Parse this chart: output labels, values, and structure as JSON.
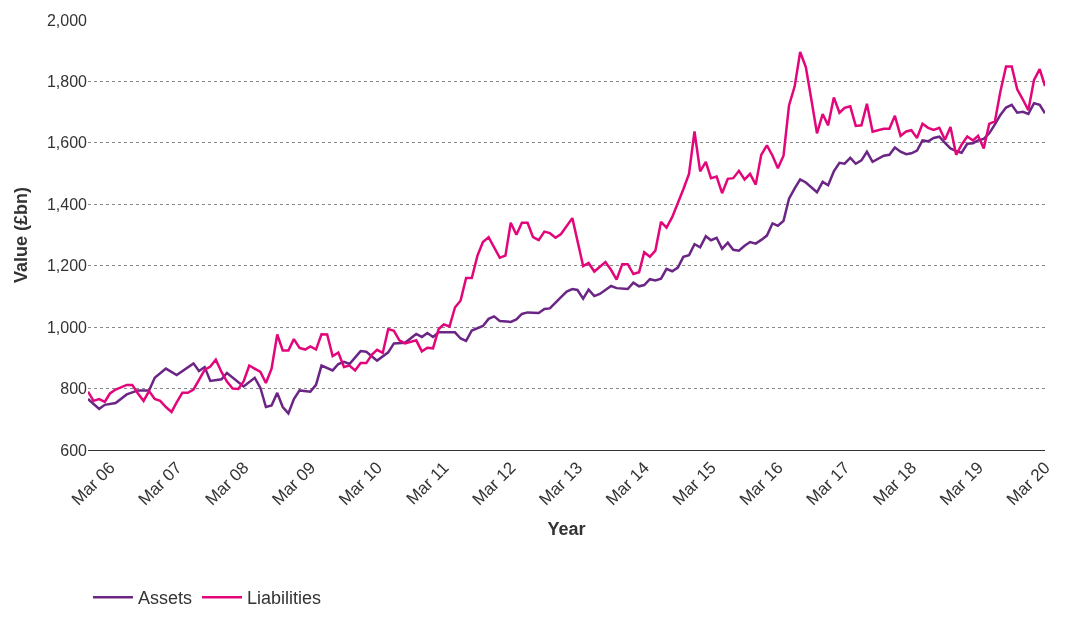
{
  "chart_data": {
    "type": "line",
    "xlabel": "Year",
    "ylabel": "Value (£bn)",
    "xlim": [
      "2005-11",
      "2020-03"
    ],
    "xticks": [
      {
        "value": "2006-03",
        "label": "Mar 06"
      },
      {
        "value": "2007-03",
        "label": "Mar 07"
      },
      {
        "value": "2008-03",
        "label": "Mar 08"
      },
      {
        "value": "2009-03",
        "label": "Mar 09"
      },
      {
        "value": "2010-03",
        "label": "Mar 10"
      },
      {
        "value": "2011-03",
        "label": "Mar 11"
      },
      {
        "value": "2012-03",
        "label": "Mar 12"
      },
      {
        "value": "2013-03",
        "label": "Mar 13"
      },
      {
        "value": "2014-03",
        "label": "Mar 14"
      },
      {
        "value": "2015-03",
        "label": "Mar 15"
      },
      {
        "value": "2016-03",
        "label": "Mar 16"
      },
      {
        "value": "2017-03",
        "label": "Mar 17"
      },
      {
        "value": "2018-03",
        "label": "Mar 18"
      },
      {
        "value": "2019-03",
        "label": "Mar 19"
      },
      {
        "value": "2020-03",
        "label": "Mar 20"
      }
    ],
    "ylim": [
      600,
      2000
    ],
    "yticks": [
      600,
      800,
      {
        "value": 1000,
        "label": "1,000"
      },
      {
        "value": 1200,
        "label": "1,200"
      },
      {
        "value": 1400,
        "label": "1,400"
      },
      {
        "value": 1600,
        "label": "1,600"
      },
      {
        "value": 1800,
        "label": "1,800"
      },
      {
        "value": 2000,
        "label": "2,000"
      }
    ],
    "grid": "y",
    "legend": "bottom left",
    "marker": "none",
    "line_style": "solid",
    "series": [
      {
        "name": "Assets",
        "color": "#6b2584",
        "x": [
          "2005-11",
          "2006-01",
          "2006-02",
          "2006-04",
          "2006-06",
          "2006-08",
          "2006-10",
          "2006-11",
          "2007-01",
          "2007-03",
          "2007-06",
          "2007-07",
          "2007-08",
          "2007-09",
          "2007-11",
          "2007-12",
          "2008-03",
          "2008-05",
          "2008-06",
          "2008-07",
          "2008-08",
          "2008-09",
          "2008-10",
          "2008-11",
          "2008-12",
          "2009-01",
          "2009-03",
          "2009-04",
          "2009-05",
          "2009-07",
          "2009-08",
          "2009-09",
          "2009-10",
          "2009-12",
          "2010-01",
          "2010-03",
          "2010-05",
          "2010-06",
          "2010-08",
          "2010-10",
          "2010-11",
          "2010-12",
          "2011-01",
          "2011-02",
          "2011-05",
          "2011-06",
          "2011-07",
          "2011-08",
          "2011-10",
          "2011-11",
          "2011-12",
          "2012-01",
          "2012-03",
          "2012-04",
          "2012-05",
          "2012-06",
          "2012-08",
          "2012-09",
          "2012-10",
          "2012-12",
          "2013-01",
          "2013-02",
          "2013-03",
          "2013-04",
          "2013-05",
          "2013-06",
          "2013-07",
          "2013-09",
          "2013-10",
          "2013-12",
          "2014-01",
          "2014-02",
          "2014-03",
          "2014-04",
          "2014-05",
          "2014-06",
          "2014-07",
          "2014-08",
          "2014-09",
          "2014-10",
          "2014-11",
          "2014-12",
          "2015-01",
          "2015-02",
          "2015-03",
          "2015-04",
          "2015-05",
          "2015-06",
          "2015-07",
          "2015-08",
          "2015-09",
          "2015-10",
          "2015-11",
          "2015-12",
          "2016-01",
          "2016-02",
          "2016-03",
          "2016-04",
          "2016-05",
          "2016-06",
          "2016-07",
          "2016-08",
          "2016-10",
          "2016-11",
          "2016-12",
          "2017-01",
          "2017-02",
          "2017-03",
          "2017-04",
          "2017-05",
          "2017-06",
          "2017-07",
          "2017-08",
          "2017-10",
          "2017-11",
          "2017-12",
          "2018-01",
          "2018-02",
          "2018-03",
          "2018-04",
          "2018-05",
          "2018-06",
          "2018-07",
          "2018-08",
          "2018-09",
          "2018-10",
          "2018-11",
          "2018-12",
          "2019-01",
          "2019-02",
          "2019-03",
          "2019-04",
          "2019-05",
          "2019-06",
          "2019-07",
          "2019-08",
          "2019-09",
          "2019-10",
          "2019-11",
          "2019-12",
          "2020-01",
          "2020-02",
          "2020-03"
        ],
        "values": [
          766,
          734,
          747,
          753,
          781,
          794,
          794,
          835,
          865,
          844,
          882,
          857,
          870,
          825,
          830,
          851,
          807,
          835,
          802,
          740,
          745,
          786,
          740,
          719,
          766,
          794,
          790,
          812,
          875,
          859,
          880,
          887,
          880,
          922,
          920,
          891,
          918,
          947,
          949,
          978,
          968,
          981,
          968,
          983,
          983,
          963,
          955,
          989,
          1004,
          1027,
          1035,
          1020,
          1017,
          1025,
          1043,
          1048,
          1046,
          1059,
          1061,
          1098,
          1116,
          1124,
          1121,
          1093,
          1122,
          1101,
          1108,
          1134,
          1127,
          1124,
          1145,
          1133,
          1137,
          1156,
          1152,
          1158,
          1190,
          1182,
          1194,
          1229,
          1234,
          1270,
          1260,
          1296,
          1283,
          1291,
          1255,
          1275,
          1252,
          1249,
          1265,
          1277,
          1272,
          1284,
          1298,
          1338,
          1330,
          1346,
          1418,
          1452,
          1481,
          1471,
          1439,
          1473,
          1462,
          1507,
          1535,
          1532,
          1551,
          1532,
          1543,
          1571,
          1538,
          1558,
          1561,
          1585,
          1571,
          1563,
          1566,
          1575,
          1608,
          1605,
          1616,
          1620,
          1600,
          1582,
          1573,
          1568,
          1597,
          1599,
          1608,
          1613,
          1631,
          1660,
          1691,
          1715,
          1724,
          1698,
          1701,
          1694,
          1729,
          1724,
          1696
        ]
      },
      {
        "name": "Liabilities",
        "color": "#e2067a",
        "x": [
          "2005-11",
          "2005-12",
          "2006-01",
          "2006-02",
          "2006-03",
          "2006-04",
          "2006-06",
          "2006-07",
          "2006-08",
          "2006-09",
          "2006-10",
          "2006-11",
          "2006-12",
          "2007-01",
          "2007-02",
          "2007-03",
          "2007-04",
          "2007-05",
          "2007-06",
          "2007-07",
          "2007-08",
          "2007-09",
          "2007-10",
          "2007-11",
          "2007-12",
          "2008-01",
          "2008-02",
          "2008-03",
          "2008-04",
          "2008-06",
          "2008-07",
          "2008-08",
          "2008-09",
          "2008-10",
          "2008-11",
          "2008-12",
          "2009-01",
          "2009-02",
          "2009-03",
          "2009-04",
          "2009-05",
          "2009-06",
          "2009-07",
          "2009-08",
          "2009-09",
          "2009-10",
          "2009-11",
          "2009-12",
          "2010-01",
          "2010-02",
          "2010-03",
          "2010-04",
          "2010-05",
          "2010-06",
          "2010-07",
          "2010-08",
          "2010-10",
          "2010-11",
          "2010-12",
          "2011-01",
          "2011-02",
          "2011-03",
          "2011-04",
          "2011-05",
          "2011-06",
          "2011-07",
          "2011-08",
          "2011-09",
          "2011-10",
          "2011-11",
          "2012-01",
          "2012-02",
          "2012-03",
          "2012-04",
          "2012-05",
          "2012-06",
          "2012-07",
          "2012-08",
          "2012-09",
          "2012-10",
          "2012-11",
          "2012-12",
          "2013-02",
          "2013-04",
          "2013-05",
          "2013-06",
          "2013-08",
          "2013-09",
          "2013-10",
          "2013-11",
          "2013-12",
          "2014-01",
          "2014-02",
          "2014-03",
          "2014-04",
          "2014-05",
          "2014-06",
          "2014-07",
          "2014-08",
          "2014-10",
          "2014-11",
          "2014-12",
          "2015-01",
          "2015-02",
          "2015-03",
          "2015-04",
          "2015-05",
          "2015-06",
          "2015-07",
          "2015-08",
          "2015-09",
          "2015-10",
          "2015-11",
          "2015-12",
          "2016-01",
          "2016-02",
          "2016-03",
          "2016-04",
          "2016-05",
          "2016-06",
          "2016-07",
          "2016-08",
          "2016-09",
          "2016-10",
          "2016-11",
          "2016-12",
          "2017-01",
          "2017-02",
          "2017-03",
          "2017-04",
          "2017-05",
          "2017-06",
          "2017-07",
          "2017-08",
          "2017-10",
          "2017-11",
          "2017-12",
          "2018-01",
          "2018-02",
          "2018-03",
          "2018-04",
          "2018-05",
          "2018-06",
          "2018-07",
          "2018-08",
          "2018-09",
          "2018-10",
          "2018-11",
          "2018-12",
          "2019-01",
          "2019-02",
          "2019-03",
          "2019-04",
          "2019-05",
          "2019-06",
          "2019-07",
          "2019-08",
          "2019-09",
          "2019-10",
          "2019-11",
          "2019-12",
          "2020-01",
          "2020-02",
          "2020-03"
        ],
        "values": [
          790,
          760,
          766,
          757,
          784,
          797,
          812,
          812,
          784,
          760,
          792,
          766,
          760,
          740,
          724,
          755,
          786,
          786,
          797,
          828,
          861,
          872,
          894,
          854,
          823,
          800,
          799,
          823,
          875,
          854,
          818,
          865,
          976,
          924,
          924,
          961,
          932,
          927,
          937,
          927,
          977,
          976,
          906,
          917,
          870,
          875,
          859,
          883,
          883,
          911,
          926,
          916,
          994,
          988,
          957,
          947,
          957,
          921,
          933,
          931,
          994,
          1009,
          1002,
          1064,
          1087,
          1160,
          1160,
          1233,
          1277,
          1293,
          1226,
          1233,
          1340,
          1301,
          1340,
          1340,
          1293,
          1283,
          1311,
          1306,
          1291,
          1303,
          1355,
          1199,
          1209,
          1181,
          1212,
          1186,
          1155,
          1205,
          1205,
          1173,
          1179,
          1244,
          1229,
          1249,
          1343,
          1324,
          1358,
          1449,
          1499,
          1637,
          1507,
          1538,
          1485,
          1490,
          1436,
          1483,
          1485,
          1509,
          1481,
          1499,
          1464,
          1561,
          1592,
          1558,
          1517,
          1558,
          1722,
          1784,
          1896,
          1847,
          1738,
          1631,
          1694,
          1657,
          1748,
          1698,
          1714,
          1719,
          1655,
          1657,
          1727,
          1636,
          1646,
          1646,
          1688,
          1623,
          1637,
          1641,
          1616,
          1662,
          1649,
          1642,
          1649,
          1610,
          1652,
          1561,
          1594,
          1621,
          1608,
          1623,
          1582,
          1662,
          1670,
          1767,
          1849,
          1849,
          1774,
          1741,
          1706,
          1805,
          1840,
          1785
        ]
      }
    ]
  }
}
